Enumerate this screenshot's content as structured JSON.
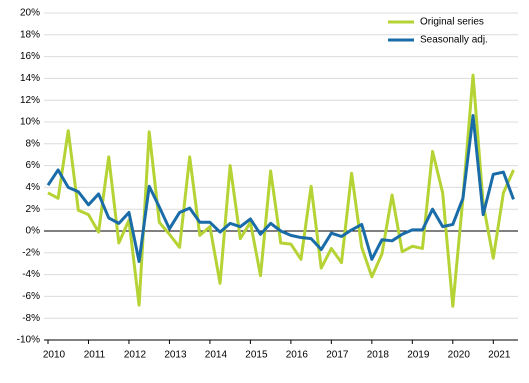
{
  "chart_data": {
    "type": "line",
    "categories": [
      "2010",
      null,
      null,
      null,
      "2011",
      null,
      null,
      null,
      "2012",
      null,
      null,
      null,
      "2013",
      null,
      null,
      null,
      "2014",
      null,
      null,
      null,
      "2015",
      null,
      null,
      null,
      "2016",
      null,
      null,
      null,
      "2017",
      null,
      null,
      null,
      "2018",
      null,
      null,
      null,
      "2019",
      null,
      null,
      null,
      "2020",
      null,
      null,
      null,
      "2021",
      null,
      null
    ],
    "series": [
      {
        "name": "Original series",
        "color": "#b5d334",
        "values": [
          3.5,
          3.0,
          9.2,
          1.9,
          1.5,
          -0.1,
          6.8,
          -1.1,
          1.0,
          -6.8,
          9.1,
          0.8,
          -0.3,
          -1.5,
          6.8,
          -0.4,
          0.4,
          -4.8,
          6.0,
          -0.7,
          0.8,
          -4.1,
          5.5,
          -1.1,
          -1.2,
          -2.6,
          4.1,
          -3.4,
          -1.6,
          -2.9,
          5.3,
          -1.5,
          -4.2,
          -2.1,
          3.3,
          -1.9,
          -1.4,
          -1.6,
          7.3,
          3.5,
          -6.9,
          3.0,
          14.3,
          2.5,
          -2.5,
          3.5,
          5.6
        ]
      },
      {
        "name": "Seasonally adj.",
        "color": "#1a6ca8",
        "values": [
          4.2,
          5.6,
          4.0,
          3.6,
          2.4,
          3.4,
          1.2,
          0.7,
          1.7,
          -2.8,
          4.1,
          2.2,
          0.2,
          1.7,
          2.1,
          0.8,
          0.8,
          -0.1,
          0.7,
          0.4,
          1.1,
          -0.3,
          0.7,
          0.0,
          -0.4,
          -0.6,
          -0.7,
          -1.7,
          -0.2,
          -0.5,
          0.1,
          0.6,
          -2.6,
          -0.8,
          -0.9,
          -0.3,
          0.1,
          0.1,
          2.0,
          0.4,
          0.6,
          3.0,
          10.6,
          1.5,
          5.2,
          5.4,
          2.9
        ]
      }
    ],
    "ylim": [
      -10,
      20
    ],
    "yticks": [
      {
        "value": -10,
        "label": "-10%"
      },
      {
        "value": -8,
        "label": "-8%"
      },
      {
        "value": -6,
        "label": "-6%"
      },
      {
        "value": -4,
        "label": "-4%"
      },
      {
        "value": -2,
        "label": "-2%"
      },
      {
        "value": 0,
        "label": "0%"
      },
      {
        "value": 2,
        "label": "2%"
      },
      {
        "value": 4,
        "label": "4%"
      },
      {
        "value": 6,
        "label": "6%"
      },
      {
        "value": 8,
        "label": "8%"
      },
      {
        "value": 10,
        "label": "10%"
      },
      {
        "value": 12,
        "label": "12%"
      },
      {
        "value": 14,
        "label": "14%"
      },
      {
        "value": 16,
        "label": "16%"
      },
      {
        "value": 18,
        "label": "18%"
      },
      {
        "value": 20,
        "label": "20%"
      }
    ],
    "grid": true,
    "legend": "top-right"
  }
}
